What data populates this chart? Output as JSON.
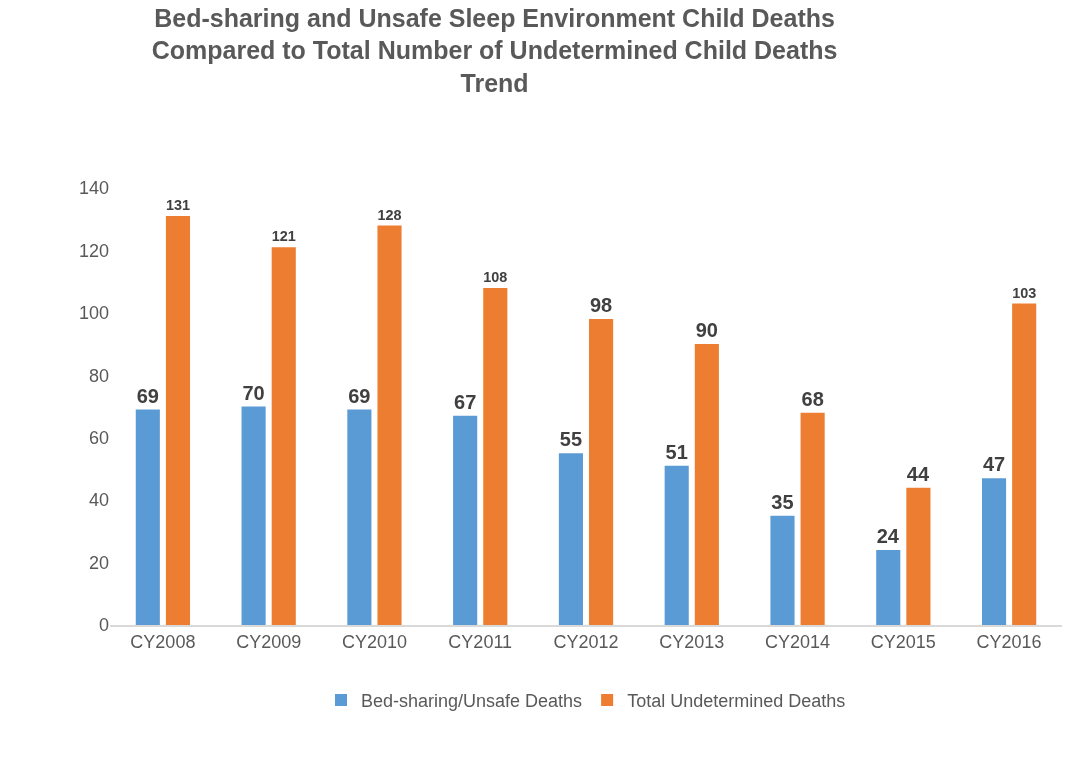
{
  "chart_data": {
    "type": "bar",
    "title": "Bed-sharing and Unsafe Sleep Environment Child Deaths\nCompared to Total Number of Undetermined Child Deaths\nTrend",
    "categories": [
      "CY2008",
      "CY2009",
      "CY2010",
      "CY2011",
      "CY2012",
      "CY2013",
      "CY2014",
      "CY2015",
      "CY2016"
    ],
    "series": [
      {
        "name": "Bed-sharing/Unsafe Deaths",
        "color": "#5b9bd5",
        "values": [
          69,
          70,
          69,
          67,
          55,
          51,
          35,
          24,
          47
        ]
      },
      {
        "name": "Total Undetermined Deaths",
        "color": "#ed7d31",
        "values": [
          131,
          121,
          128,
          108,
          98,
          90,
          68,
          44,
          103
        ]
      }
    ],
    "ylim": [
      0,
      140
    ],
    "yticks": [
      0,
      20,
      40,
      60,
      80,
      100,
      120,
      140
    ],
    "grid": false,
    "legend": "bottom",
    "data_labels": true
  }
}
